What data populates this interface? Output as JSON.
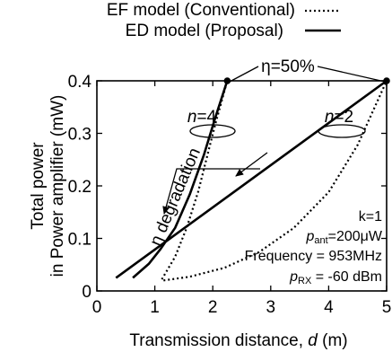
{
  "chart_data": {
    "type": "line",
    "xlabel_prefix": "Transmission distance, ",
    "xlabel_var": "d",
    "xlabel_suffix": " (m)",
    "ylabel_line1": "Total power",
    "ylabel_line2": "in Power amplifier (mW)",
    "xlim": [
      0,
      5
    ],
    "ylim": [
      0,
      0.4
    ],
    "xticks": [
      0,
      1,
      2,
      3,
      4,
      5
    ],
    "yticks": [
      0,
      0.1,
      0.2,
      0.3,
      0.4
    ],
    "xtick_labels": [
      "0",
      "1",
      "2",
      "3",
      "4",
      "5"
    ],
    "ytick_labels": [
      "0",
      "0.1",
      "0.2",
      "0.3",
      "0.4"
    ],
    "grid": false,
    "legend_position": "top-right",
    "legend": [
      {
        "label": "EF model (Conventional)",
        "style": "dotted"
      },
      {
        "label": "ED model (Proposal)",
        "style": "solid"
      }
    ],
    "series": [
      {
        "model": "ED",
        "n": 2,
        "style": "solid",
        "x": [
          0.33,
          5.0
        ],
        "y": [
          0.025,
          0.4
        ]
      },
      {
        "model": "EF",
        "n": 2,
        "style": "dotted",
        "x": [
          1.15,
          1.6,
          2.2,
          2.8,
          3.4,
          4.0,
          4.5,
          5.0
        ],
        "y": [
          0.02,
          0.027,
          0.044,
          0.074,
          0.12,
          0.188,
          0.278,
          0.4
        ]
      },
      {
        "model": "ED",
        "n": 4,
        "style": "solid",
        "x": [
          0.62,
          0.9,
          1.1,
          1.35,
          1.6,
          1.85,
          2.05,
          2.25
        ],
        "y": [
          0.025,
          0.052,
          0.08,
          0.12,
          0.183,
          0.26,
          0.332,
          0.4
        ]
      },
      {
        "model": "EF",
        "n": 4,
        "style": "dotted",
        "x": [
          1.12,
          1.35,
          1.55,
          1.75,
          1.9,
          2.05,
          2.15,
          2.25
        ],
        "y": [
          0.022,
          0.065,
          0.12,
          0.19,
          0.255,
          0.32,
          0.36,
          0.4
        ]
      }
    ],
    "endpoints": [
      {
        "x": 2.25,
        "y": 0.4
      },
      {
        "x": 5.0,
        "y": 0.4
      }
    ],
    "annotations": {
      "eta": "η=50%",
      "n4_var": "n",
      "n4_val": "=4",
      "n2_var": "n",
      "n2_val": "=2",
      "degradation": "η degradation",
      "params": {
        "k": "k=1",
        "pant_var": "p",
        "pant_sub": "ant",
        "pant_val": "=200μW",
        "freq": "Frequency = 953MHz",
        "prx_var": "p",
        "prx_sub": "RX",
        "prx_val": " = -60 dBm"
      }
    }
  },
  "colors": {
    "line": "#000000",
    "background": "#ffffff"
  }
}
